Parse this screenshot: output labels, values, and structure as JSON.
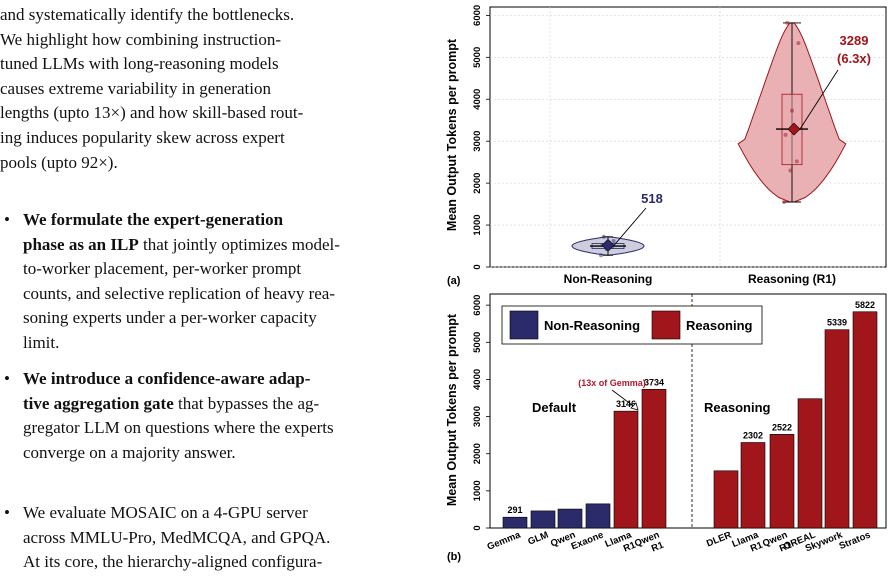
{
  "text_column": {
    "intro_lines": [
      "and systematically identify the bottlenecks.",
      "We highlight how combining instruction-",
      "tuned LLMs with long-reasoning models",
      "causes extreme variability in generation",
      "lengths (upto 13×) and how skill-based rout-",
      "ing induces popularity skew across expert",
      "pools (upto 92×)."
    ],
    "bullets": [
      {
        "bold_first": "We formulate the expert-generation",
        "bold_second": "phase as an ILP",
        "rest_second": " that jointly optimizes model-",
        "lines": [
          "to-worker placement, per-worker prompt",
          "counts, and selective replication of heavy rea-",
          "soning experts under a per-worker capacity",
          "limit."
        ]
      },
      {
        "bold_first": "We introduce a confidence-aware adap-",
        "bold_second": "tive aggregation gate",
        "rest_second": " that bypasses the ag-",
        "lines": [
          "gregator LLM on questions where the experts",
          "converge on a majority answer."
        ]
      },
      {
        "first": "We evaluate MOSAIC on a 4-GPU server",
        "lines": [
          "across MMLU-Pro, MedMCQA, and GPQA.",
          "At its core, the hierarchy-aligned configura-"
        ]
      }
    ]
  },
  "figure": {
    "panel_a": {
      "label": "(a)",
      "ylabel": "Mean Output Tokens per prompt",
      "categories": [
        "Non-Reasoning",
        "Reasoning (R1)"
      ],
      "annotations": {
        "nonreasoning": "518",
        "reasoning_value": "3289",
        "reasoning_ratio": "(6.3x)"
      }
    },
    "panel_b": {
      "label": "(b)",
      "ylabel": "Mean Output Tokens per prompt",
      "legend": [
        "Non-Reasoning",
        "Reasoning"
      ],
      "group_labels": [
        "Default",
        "Reasoning"
      ],
      "callout": "(13x of Gemma)"
    },
    "colors": {
      "nonreasoning": "#2b2b6b",
      "reasoning": "#a0161a",
      "callout": "#b0182a"
    }
  },
  "chart_data": [
    {
      "type": "violin",
      "categories": [
        "Non-Reasoning",
        "Reasoning (R1)"
      ],
      "ylabel": "Mean Output Tokens per prompt",
      "ylim": [
        0,
        6200
      ],
      "yticks": [
        0,
        1000,
        2000,
        3000,
        4000,
        5000,
        6000
      ],
      "series": [
        {
          "name": "Non-Reasoning",
          "mean": 518,
          "median": 500,
          "q1": 440,
          "q3": 560,
          "min": 280,
          "max": 720,
          "points": [
            280,
            430,
            480,
            520,
            560,
            620,
            720
          ]
        },
        {
          "name": "Reasoning (R1)",
          "mean": 3289,
          "median": 3290,
          "q1": 2440,
          "q3": 4120,
          "min": 1550,
          "max": 5820,
          "points": [
            1550,
            2300,
            2520,
            3150,
            3730,
            5340,
            5820
          ]
        }
      ],
      "annotations": [
        "518",
        "3289 (6.3x)"
      ]
    },
    {
      "type": "bar",
      "categories": [
        "Gemma",
        "GLM",
        "Qwen",
        "Exaone",
        "Llama R1",
        "Qwen R1",
        "DLER",
        "Llama R1",
        "Qwen R1",
        "OREAL",
        "Skywork",
        "Stratos"
      ],
      "values": [
        291,
        460,
        510,
        650,
        3146,
        3734,
        1540,
        2302,
        2522,
        3480,
        5339,
        5822
      ],
      "data_labels": [
        "291",
        "",
        "",
        "",
        "3146",
        "3734",
        "",
        "2302",
        "2522",
        "",
        "5339",
        "5822"
      ],
      "groups": [
        "nonreasoning",
        "nonreasoning",
        "nonreasoning",
        "nonreasoning",
        "reasoning",
        "reasoning",
        "reasoning",
        "reasoning",
        "reasoning",
        "reasoning",
        "reasoning",
        "reasoning"
      ],
      "ylabel": "Mean Output Tokens per prompt",
      "ylim": [
        0,
        6300
      ],
      "yticks": [
        0,
        1000,
        2000,
        3000,
        4000,
        5000,
        6000
      ],
      "legend": [
        "Non-Reasoning",
        "Reasoning"
      ],
      "legend_position": "top-left"
    }
  ]
}
